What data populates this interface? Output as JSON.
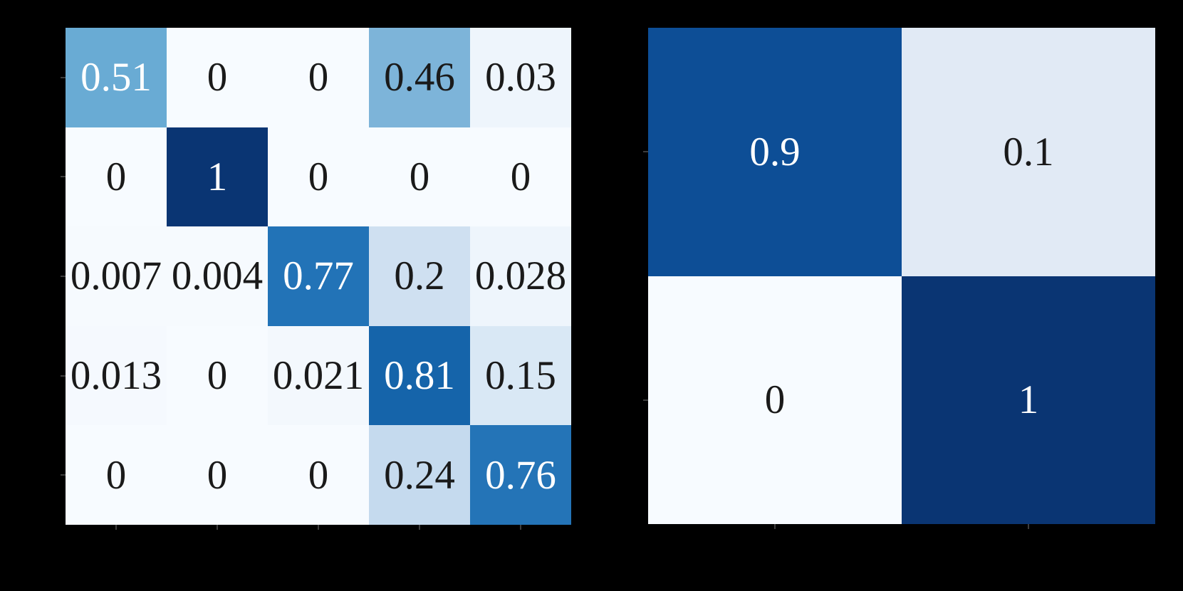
{
  "figure": {
    "description": "Two blue confusion-matrix heatmaps on a black background",
    "background_color": "#000000",
    "colormap": "Blues",
    "annotation_color_dark": "#1a1a1a",
    "annotation_color_light": "#ffffff",
    "tick_color": "#3d3d3d"
  },
  "chart_data": [
    {
      "type": "heatmap",
      "name": "left-confusion-matrix",
      "rows": 5,
      "cols": 5,
      "title": "",
      "xlabel": "",
      "ylabel": "",
      "value_range": [
        0,
        1
      ],
      "values": [
        [
          0.51,
          0,
          0,
          0.46,
          0.03
        ],
        [
          0,
          1,
          0,
          0,
          0
        ],
        [
          0.007,
          0.004,
          0.77,
          0.2,
          0.028
        ],
        [
          0.013,
          0,
          0.021,
          0.81,
          0.15
        ],
        [
          0,
          0,
          0,
          0.24,
          0.76
        ]
      ],
      "labels": [
        [
          "0.51",
          "0",
          "0",
          "0.46",
          "0.03"
        ],
        [
          "0",
          "1",
          "0",
          "0",
          "0"
        ],
        [
          "0.007",
          "0.004",
          "0.77",
          "0.2",
          "0.028"
        ],
        [
          "0.013",
          "0",
          "0.021",
          "0.81",
          "0.15"
        ],
        [
          "0",
          "0",
          "0",
          "0.24",
          "0.76"
        ]
      ],
      "cell_colors": [
        [
          "#69abd4",
          "#f7fbff",
          "#f7fbff",
          "#7db4d9",
          "#eef5fc"
        ],
        [
          "#f7fbff",
          "#0a3573",
          "#f7fbff",
          "#f7fbff",
          "#f7fbff"
        ],
        [
          "#f6fafe",
          "#f6fafe",
          "#2273b7",
          "#cfe0f1",
          "#eef5fc"
        ],
        [
          "#f5f9fe",
          "#f7fbff",
          "#f3f8fd",
          "#1564aa",
          "#d9e8f5"
        ],
        [
          "#f7fbff",
          "#f7fbff",
          "#f7fbff",
          "#c5daee",
          "#2474b7"
        ]
      ],
      "label_colors": [
        [
          "#ffffff",
          "#1a1a1a",
          "#1a1a1a",
          "#1a1a1a",
          "#1a1a1a"
        ],
        [
          "#1a1a1a",
          "#ffffff",
          "#1a1a1a",
          "#1a1a1a",
          "#1a1a1a"
        ],
        [
          "#1a1a1a",
          "#1a1a1a",
          "#ffffff",
          "#1a1a1a",
          "#1a1a1a"
        ],
        [
          "#1a1a1a",
          "#1a1a1a",
          "#1a1a1a",
          "#ffffff",
          "#1a1a1a"
        ],
        [
          "#1a1a1a",
          "#1a1a1a",
          "#1a1a1a",
          "#1a1a1a",
          "#ffffff"
        ]
      ]
    },
    {
      "type": "heatmap",
      "name": "right-confusion-matrix",
      "rows": 2,
      "cols": 2,
      "title": "",
      "xlabel": "",
      "ylabel": "",
      "value_range": [
        0,
        1
      ],
      "values": [
        [
          0.9,
          0.1
        ],
        [
          0,
          1
        ]
      ],
      "labels": [
        [
          "0.9",
          "0.1"
        ],
        [
          "0",
          "1"
        ]
      ],
      "cell_colors": [
        [
          "#0d4e96",
          "#e1eaf5"
        ],
        [
          "#f7fbff",
          "#0a3573"
        ]
      ],
      "label_colors": [
        [
          "#ffffff",
          "#1a1a1a"
        ],
        [
          "#1a1a1a",
          "#ffffff"
        ]
      ]
    }
  ]
}
